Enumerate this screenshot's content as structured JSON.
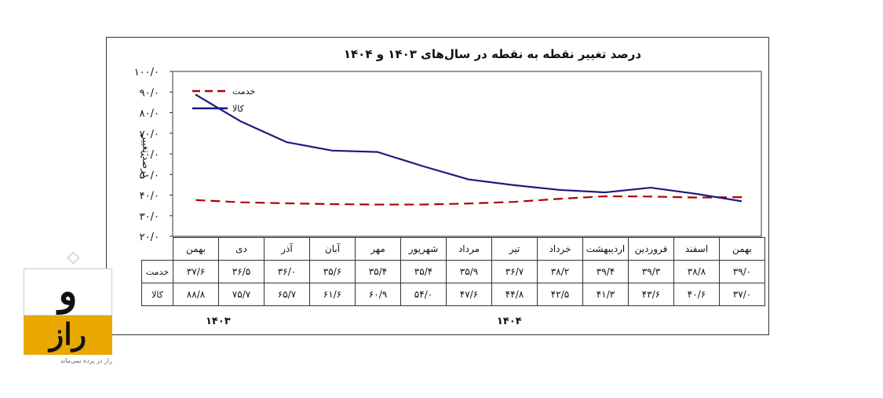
{
  "chart_data": {
    "type": "line",
    "title": "درصد تغییر نقطه به نقطه در سال‌های ۱۴۰۳ و ۱۴۰۴",
    "ylabel": "درصد تغییر",
    "ylim": [
      20,
      100
    ],
    "yticks": [
      20,
      30,
      40,
      50,
      60,
      70,
      80,
      90,
      100
    ],
    "ytick_labels": [
      "۲۰/۰",
      "۳۰/۰",
      "۴۰/۰",
      "۵۰/۰",
      "۶۰/۰",
      "۷۰/۰",
      "۸۰/۰",
      "۹۰/۰",
      "۱۰۰/۰"
    ],
    "categories": [
      "بهمن",
      "اسفند",
      "فروردین",
      "اردیبهشت",
      "خرداد",
      "تیر",
      "مرداد",
      "شهریور",
      "مهر",
      "آبان",
      "آذر",
      "دی",
      "بهمن"
    ],
    "legend_position": "top-left",
    "series": [
      {
        "name": "خدمت",
        "color": "#b00000",
        "style": "dashed",
        "values": [
          39.0,
          38.8,
          39.3,
          39.4,
          38.2,
          36.7,
          35.9,
          35.4,
          35.4,
          35.6,
          36.0,
          36.5,
          37.6
        ],
        "labels": [
          "۳۹/۰",
          "۳۸/۸",
          "۳۹/۳",
          "۳۹/۴",
          "۳۸/۲",
          "۳۶/۷",
          "۳۵/۹",
          "۳۵/۴",
          "۳۵/۴",
          "۳۵/۶",
          "۳۶/۰",
          "۳۶/۵",
          "۳۷/۶"
        ]
      },
      {
        "name": "کالا",
        "color": "#1a1a80",
        "style": "solid",
        "values": [
          37.0,
          40.6,
          43.6,
          41.3,
          42.5,
          44.8,
          47.6,
          54.0,
          60.9,
          61.6,
          65.7,
          75.7,
          88.8
        ],
        "labels": [
          "۳۷/۰",
          "۴۰/۶",
          "۴۳/۶",
          "۴۱/۳",
          "۴۲/۵",
          "۴۴/۸",
          "۴۷/۶",
          "۵۴/۰",
          "۶۰/۹",
          "۶۱/۶",
          "۶۵/۷",
          "۷۵/۷",
          "۸۸/۸"
        ]
      }
    ],
    "year_labels": [
      "۱۴۰۳",
      "۱۴۰۴"
    ]
  },
  "logo": {
    "top_text": "و",
    "bottom_text": "راز",
    "tagline": "راز در پرده نمی‌ماند",
    "accent_color": "#e8a800"
  }
}
